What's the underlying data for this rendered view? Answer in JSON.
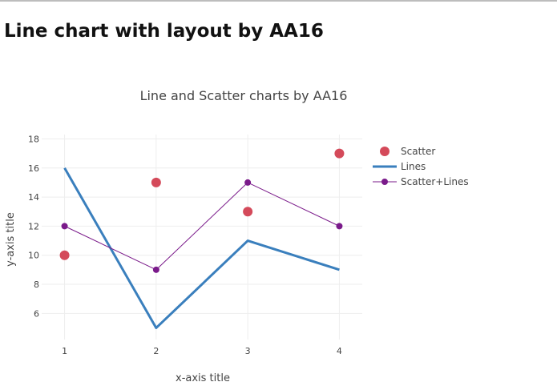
{
  "page": {
    "heading": "Line chart with layout by AA16"
  },
  "chart_data": {
    "type": "line",
    "title": "Line and Scatter charts by AA16",
    "xlabel": "x-axis title",
    "ylabel": "y-axis title",
    "x_ticks": [
      1,
      2,
      3,
      4
    ],
    "y_ticks": [
      6,
      8,
      10,
      12,
      14,
      16,
      18
    ],
    "xlim": [
      0.75,
      4.25
    ],
    "ylim": [
      4.2,
      18.3
    ],
    "grid": true,
    "legend_position": "right",
    "series": [
      {
        "name": "Scatter",
        "mode": "markers",
        "color": "#d44a5a",
        "x": [
          1,
          2,
          3,
          4
        ],
        "y": [
          10,
          15,
          13,
          17
        ]
      },
      {
        "name": "Lines",
        "mode": "lines",
        "color": "#3a7fbd",
        "x": [
          1,
          2,
          3,
          4
        ],
        "y": [
          16,
          5,
          11,
          9
        ]
      },
      {
        "name": "Scatter+Lines",
        "mode": "lines+markers",
        "color": "#7a1a8a",
        "x": [
          1,
          2,
          3,
          4
        ],
        "y": [
          12,
          9,
          15,
          12
        ]
      }
    ]
  }
}
